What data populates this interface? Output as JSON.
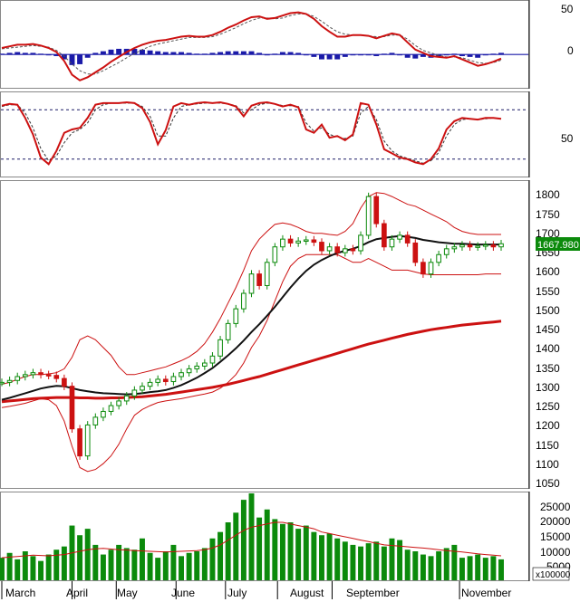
{
  "chart_data": [
    {
      "type": "line",
      "panel": "MACD",
      "y_ticks": [
        "50",
        "0"
      ],
      "ylim": [
        -40,
        65
      ],
      "zero_line": true,
      "colors": {
        "macd": "#cc1111",
        "signal": "#555555",
        "histogram": "#1a1aa8"
      },
      "x": [
        0,
        3,
        6,
        9,
        12,
        15,
        18,
        21,
        24,
        27,
        30,
        33,
        36,
        39,
        42,
        45,
        48,
        51,
        54,
        57,
        60,
        63,
        66,
        69,
        72,
        75,
        78,
        81,
        84,
        87,
        90,
        93,
        96,
        99,
        102,
        105,
        108,
        111,
        114,
        117,
        120,
        123,
        126,
        129,
        132,
        135,
        138,
        141,
        144,
        147,
        150,
        153,
        156,
        159,
        162,
        165,
        168,
        171,
        174,
        177,
        180,
        183,
        186,
        189,
        192
      ],
      "series": [
        {
          "role": "macd",
          "values": [
            8,
            10,
            12,
            12,
            13,
            11,
            8,
            3,
            -8,
            -25,
            -32,
            -28,
            -22,
            -16,
            -9,
            -3,
            3,
            8,
            12,
            15,
            17,
            18,
            20,
            22,
            23,
            22,
            22,
            24,
            28,
            33,
            37,
            42,
            46,
            47,
            44,
            45,
            48,
            51,
            52,
            50,
            44,
            35,
            28,
            22,
            22,
            24,
            24,
            23,
            20,
            23,
            26,
            24,
            15,
            6,
            2,
            -2,
            -3,
            -4,
            -2,
            -6,
            -10,
            -14,
            -12,
            -9,
            -5
          ]
        },
        {
          "role": "signal",
          "values": [
            7,
            8,
            9,
            10,
            11,
            10,
            9,
            5,
            -2,
            -12,
            -20,
            -24,
            -24,
            -20,
            -15,
            -10,
            -4,
            1,
            6,
            10,
            13,
            15,
            17,
            19,
            21,
            21,
            21,
            22,
            25,
            29,
            33,
            38,
            42,
            45,
            45,
            44,
            45,
            48,
            50,
            50,
            47,
            41,
            34,
            28,
            25,
            24,
            24,
            23,
            22,
            22,
            24,
            24,
            19,
            11,
            5,
            2,
            -1,
            -3,
            -3,
            -4,
            -7,
            -10,
            -11,
            -10,
            -7
          ]
        },
        {
          "role": "histogram",
          "values": [
            1,
            2,
            3,
            2,
            2,
            1,
            -1,
            -2,
            -6,
            -13,
            -12,
            -4,
            2,
            4,
            6,
            7,
            7,
            7,
            6,
            5,
            4,
            3,
            3,
            3,
            2,
            1,
            1,
            2,
            3,
            4,
            4,
            4,
            4,
            2,
            -1,
            1,
            3,
            3,
            2,
            0,
            -3,
            -6,
            -6,
            -6,
            -3,
            0,
            0,
            0,
            -2,
            1,
            2,
            0,
            -4,
            -5,
            -3,
            -4,
            -2,
            -1,
            1,
            -2,
            -3,
            -4,
            -1,
            1,
            2
          ]
        }
      ]
    },
    {
      "type": "line",
      "panel": "Stochastic",
      "y_ticks": [
        "50"
      ],
      "ylim": [
        0,
        100
      ],
      "reference_lines": [
        20,
        80
      ],
      "colors": {
        "k": "#cc1111",
        "d": "#333333"
      },
      "x": [
        0,
        3,
        6,
        9,
        12,
        15,
        18,
        21,
        24,
        27,
        30,
        33,
        36,
        39,
        42,
        45,
        48,
        51,
        54,
        57,
        60,
        63,
        66,
        69,
        72,
        75,
        78,
        81,
        84,
        87,
        90,
        93,
        96,
        99,
        102,
        105,
        108,
        111,
        114,
        117,
        120,
        123,
        126,
        129,
        132,
        135,
        138,
        141,
        144,
        147,
        150,
        153,
        156,
        159,
        162,
        165,
        168,
        171,
        174,
        177,
        180,
        183,
        186,
        189,
        192
      ],
      "series": [
        {
          "role": "%K",
          "values": [
            85,
            87,
            86,
            70,
            50,
            22,
            14,
            30,
            52,
            56,
            58,
            70,
            86,
            88,
            88,
            88,
            89,
            88,
            82,
            65,
            38,
            55,
            84,
            88,
            86,
            88,
            89,
            88,
            89,
            87,
            84,
            72,
            85,
            88,
            89,
            87,
            84,
            86,
            83,
            56,
            52,
            62,
            46,
            48,
            43,
            50,
            88,
            86,
            62,
            32,
            27,
            22,
            20,
            16,
            14,
            20,
            33,
            56,
            66,
            70,
            69,
            68,
            70,
            70,
            69
          ]
        },
        {
          "role": "%D",
          "values": [
            84,
            86,
            86,
            76,
            58,
            33,
            18,
            24,
            40,
            52,
            56,
            64,
            80,
            86,
            88,
            88,
            88,
            88,
            84,
            72,
            48,
            48,
            70,
            84,
            86,
            87,
            88,
            88,
            88,
            87,
            85,
            76,
            80,
            86,
            88,
            87,
            85,
            85,
            84,
            64,
            54,
            58,
            50,
            47,
            45,
            48,
            76,
            84,
            68,
            42,
            30,
            24,
            21,
            18,
            15,
            18,
            28,
            48,
            62,
            68,
            69,
            68,
            69,
            70,
            69
          ]
        }
      ]
    },
    {
      "type": "candlestick",
      "panel": "Price",
      "y_ticks": [
        "1800",
        "1750",
        "1700",
        "1650",
        "1600",
        "1550",
        "1500",
        "1450",
        "1400",
        "1350",
        "1300",
        "1250",
        "1200",
        "1150",
        "1100",
        "1050"
      ],
      "ylim": [
        1035,
        1830
      ],
      "last_value_label": "1667.980",
      "colors": {
        "up": "#0b8a0b",
        "down": "#cc1111",
        "ma_short": "#111111",
        "ma_long": "#cc1111",
        "bands": "#cc1111"
      },
      "x": [
        0,
        3,
        6,
        9,
        12,
        15,
        18,
        21,
        24,
        27,
        30,
        33,
        36,
        39,
        42,
        45,
        48,
        51,
        54,
        57,
        60,
        63,
        66,
        69,
        72,
        75,
        78,
        81,
        84,
        87,
        90,
        93,
        96,
        99,
        102,
        105,
        108,
        111,
        114,
        117,
        120,
        123,
        126,
        129,
        132,
        135,
        138,
        141,
        144,
        147,
        150,
        153,
        156,
        159,
        162,
        165,
        168,
        171,
        174,
        177,
        180,
        183,
        186,
        189,
        192
      ],
      "close": [
        1310,
        1315,
        1325,
        1330,
        1335,
        1330,
        1328,
        1320,
        1300,
        1190,
        1120,
        1200,
        1220,
        1235,
        1250,
        1262,
        1275,
        1290,
        1300,
        1310,
        1318,
        1312,
        1325,
        1335,
        1345,
        1352,
        1360,
        1378,
        1420,
        1462,
        1500,
        1540,
        1590,
        1560,
        1620,
        1660,
        1680,
        1670,
        1675,
        1678,
        1672,
        1650,
        1660,
        1645,
        1655,
        1650,
        1690,
        1790,
        1720,
        1660,
        1680,
        1690,
        1670,
        1620,
        1590,
        1620,
        1640,
        1655,
        1660,
        1665,
        1660,
        1662,
        1665,
        1660,
        1668
      ],
      "ma_short": [
        1265,
        1270,
        1276,
        1282,
        1288,
        1294,
        1298,
        1301,
        1300,
        1295,
        1290,
        1287,
        1284,
        1282,
        1281,
        1280,
        1279,
        1280,
        1282,
        1285,
        1287,
        1290,
        1296,
        1303,
        1312,
        1322,
        1334,
        1347,
        1363,
        1380,
        1398,
        1418,
        1440,
        1460,
        1482,
        1505,
        1530,
        1555,
        1578,
        1598,
        1614,
        1626,
        1636,
        1644,
        1650,
        1655,
        1662,
        1672,
        1680,
        1683,
        1686,
        1688,
        1686,
        1683,
        1678,
        1675,
        1672,
        1670,
        1668,
        1668,
        1667,
        1666,
        1666,
        1666,
        1666
      ],
      "ma_long": [
        1260,
        1262,
        1264,
        1266,
        1268,
        1269,
        1270,
        1271,
        1271,
        1271,
        1270,
        1270,
        1269,
        1269,
        1270,
        1270,
        1271,
        1272,
        1273,
        1275,
        1277,
        1279,
        1282,
        1285,
        1288,
        1291,
        1294,
        1297,
        1301,
        1305,
        1310,
        1315,
        1320,
        1325,
        1331,
        1337,
        1343,
        1349,
        1355,
        1361,
        1367,
        1373,
        1379,
        1385,
        1391,
        1397,
        1403,
        1409,
        1414,
        1419,
        1424,
        1429,
        1434,
        1438,
        1442,
        1446,
        1449,
        1452,
        1455,
        1458,
        1460,
        1462,
        1464,
        1466,
        1468
      ],
      "upper_band": [
        1305,
        1310,
        1318,
        1325,
        1330,
        1330,
        1332,
        1335,
        1345,
        1375,
        1420,
        1430,
        1420,
        1400,
        1380,
        1350,
        1330,
        1330,
        1335,
        1340,
        1345,
        1350,
        1358,
        1366,
        1376,
        1390,
        1410,
        1440,
        1475,
        1515,
        1555,
        1600,
        1650,
        1680,
        1700,
        1718,
        1722,
        1718,
        1710,
        1700,
        1695,
        1695,
        1692,
        1690,
        1700,
        1720,
        1760,
        1790,
        1800,
        1798,
        1790,
        1780,
        1770,
        1765,
        1755,
        1745,
        1735,
        1725,
        1710,
        1700,
        1695,
        1692,
        1692,
        1692,
        1692
      ],
      "lower_band": [
        1245,
        1248,
        1252,
        1256,
        1262,
        1268,
        1265,
        1250,
        1210,
        1145,
        1090,
        1080,
        1085,
        1100,
        1120,
        1150,
        1190,
        1225,
        1240,
        1250,
        1258,
        1262,
        1265,
        1268,
        1272,
        1276,
        1280,
        1285,
        1295,
        1310,
        1330,
        1360,
        1400,
        1430,
        1470,
        1520,
        1570,
        1610,
        1630,
        1640,
        1640,
        1640,
        1640,
        1640,
        1630,
        1620,
        1620,
        1630,
        1620,
        1610,
        1600,
        1600,
        1600,
        1595,
        1590,
        1588,
        1588,
        1588,
        1588,
        1588,
        1588,
        1588,
        1590,
        1590,
        1590
      ]
    },
    {
      "type": "bar",
      "panel": "Volume",
      "y_ticks": [
        "25000",
        "20000",
        "15000",
        "10000",
        "5000"
      ],
      "unit_label": "x100000",
      "ylim": [
        0,
        27000
      ],
      "colors": {
        "bars": "#0b8a0b",
        "average": "#cc1111"
      },
      "x_tick_labels": [
        "March",
        "April",
        "May",
        "June",
        "July",
        "August",
        "September",
        "November"
      ],
      "x_tick_positions": [
        0,
        27,
        44,
        67,
        86,
        106,
        127,
        176
      ],
      "x": [
        0,
        3,
        6,
        9,
        12,
        15,
        18,
        21,
        24,
        27,
        30,
        33,
        36,
        39,
        42,
        45,
        48,
        51,
        54,
        57,
        60,
        63,
        66,
        69,
        72,
        75,
        78,
        81,
        84,
        87,
        90,
        93,
        96,
        99,
        102,
        105,
        108,
        111,
        114,
        117,
        120,
        123,
        126,
        129,
        132,
        135,
        138,
        141,
        144,
        147,
        150,
        153,
        156,
        159,
        162,
        165,
        168,
        171,
        174,
        177,
        180,
        183,
        186,
        189,
        192
      ],
      "volume": [
        7000,
        8500,
        6500,
        9000,
        7500,
        6000,
        8000,
        9500,
        10500,
        17000,
        14000,
        16000,
        11000,
        8000,
        9500,
        11000,
        10000,
        9500,
        13000,
        8500,
        7000,
        9000,
        11000,
        7500,
        8500,
        9000,
        10000,
        13000,
        15000,
        18000,
        21000,
        25000,
        27000,
        19500,
        22000,
        19000,
        17500,
        18000,
        16000,
        17000,
        15000,
        14000,
        14500,
        13000,
        12000,
        11000,
        10500,
        11500,
        12000,
        10500,
        13000,
        12500,
        9500,
        9000,
        8000,
        7500,
        9000,
        10000,
        11000,
        7000,
        7500,
        8000,
        7000,
        7500,
        6500
      ],
      "volume_average": [
        7000,
        7200,
        7400,
        7600,
        7800,
        7700,
        7600,
        7800,
        8000,
        8500,
        9000,
        9500,
        9800,
        9900,
        9700,
        9500,
        9400,
        9200,
        9100,
        9000,
        8900,
        8800,
        8900,
        9000,
        9100,
        9200,
        9500,
        10000,
        11000,
        12500,
        14000,
        15500,
        16500,
        17000,
        17500,
        18000,
        18000,
        17500,
        17000,
        16500,
        16000,
        15000,
        14500,
        14000,
        13500,
        13000,
        12500,
        12000,
        11500,
        11000,
        10800,
        10600,
        10400,
        10200,
        10000,
        9800,
        9500,
        9200,
        9000,
        8800,
        8500,
        8200,
        8000,
        7800,
        7600
      ]
    }
  ]
}
